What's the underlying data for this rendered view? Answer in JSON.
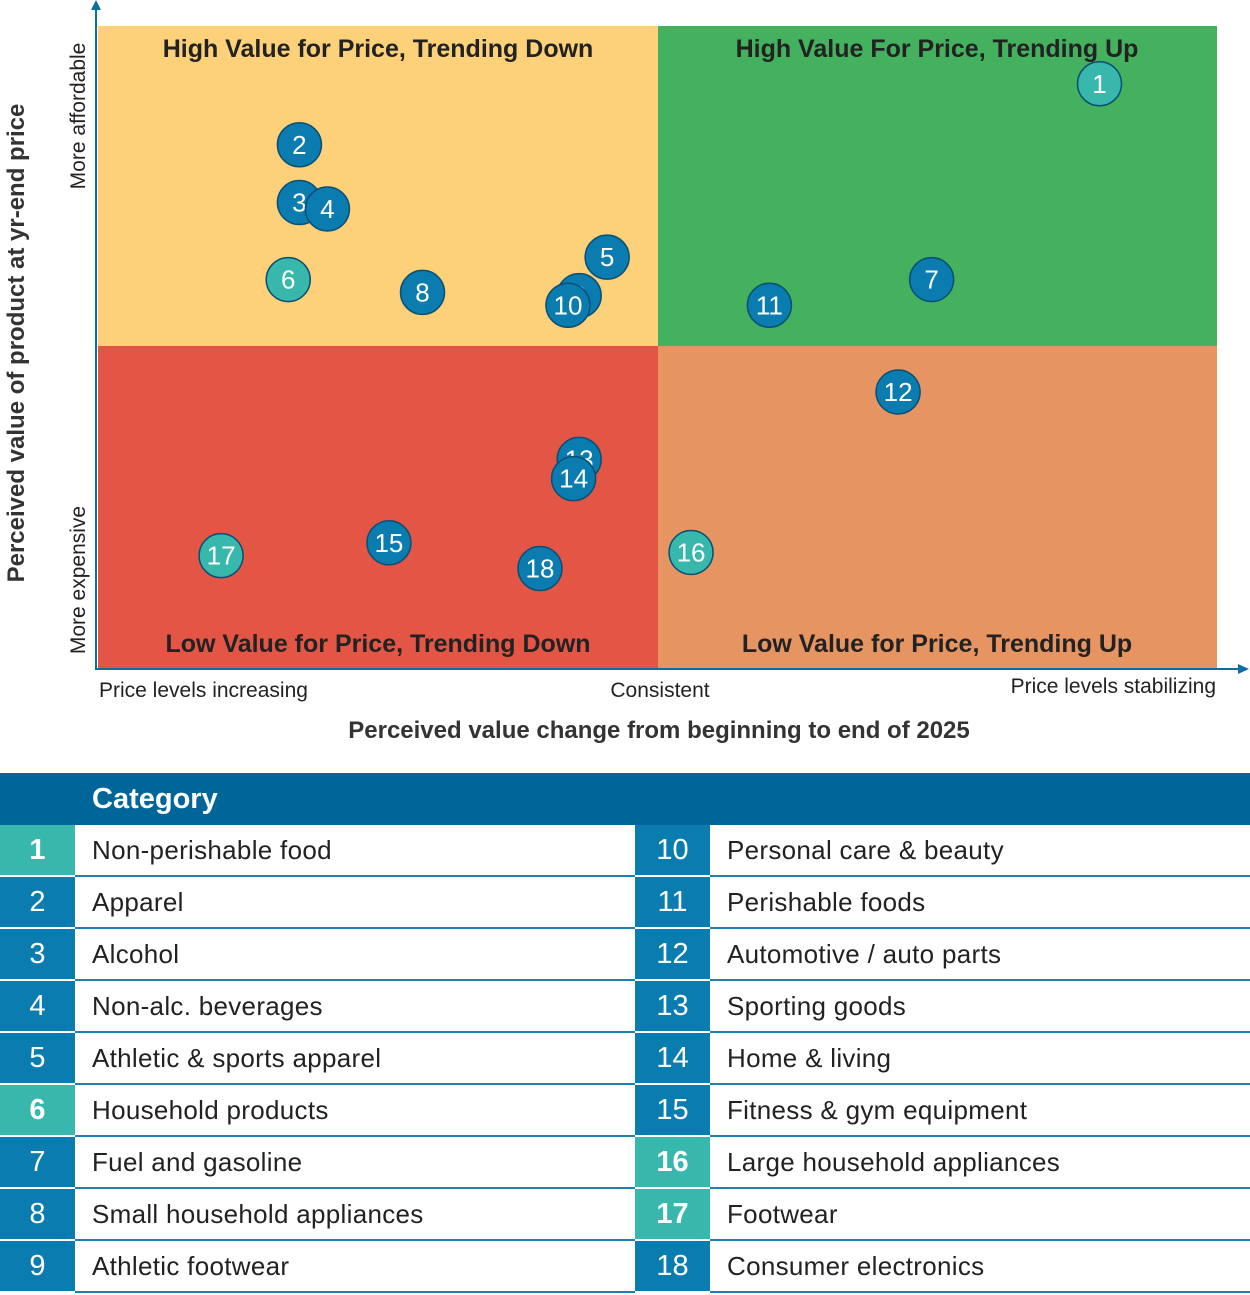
{
  "chart_data": {
    "type": "scatter",
    "quadrants": {
      "top_left": "High Value for Price, Trending Down",
      "top_right": "High Value For Price, Trending Up",
      "bottom_left": "Low Value for Price, Trending Down",
      "bottom_right": "Low Value for Price, Trending Up"
    },
    "quadrant_colors": {
      "top_left": "#fdd07a",
      "top_right": "#43b15e",
      "bottom_left": "#e35646",
      "bottom_right": "#e79463"
    },
    "xlabel": "Perceived value change from beginning to end of 2025",
    "ylabel": "Perceived value of product at yr-end price",
    "x_ticks": {
      "left": "Price levels increasing",
      "middle": "Consistent",
      "right": "Price levels stabilizing"
    },
    "y_ticks": {
      "top": "More affordable",
      "bottom": "More expensive"
    },
    "xlim": [
      -1,
      1
    ],
    "ylim": [
      -1,
      1
    ],
    "point_colors": {
      "blue": "#0b7cb0",
      "teal": "#38b8ad"
    },
    "points": [
      {
        "id": "1",
        "x": 0.79,
        "y": 0.82,
        "color": "teal"
      },
      {
        "id": "2",
        "x": -0.64,
        "y": 0.63,
        "color": "blue"
      },
      {
        "id": "3",
        "x": -0.64,
        "y": 0.45,
        "color": "blue"
      },
      {
        "id": "4",
        "x": -0.59,
        "y": 0.43,
        "color": "blue"
      },
      {
        "id": "5",
        "x": -0.09,
        "y": 0.28,
        "color": "blue"
      },
      {
        "id": "6",
        "x": -0.66,
        "y": 0.21,
        "color": "teal"
      },
      {
        "id": "7",
        "x": 0.49,
        "y": 0.21,
        "color": "blue"
      },
      {
        "id": "8",
        "x": -0.42,
        "y": 0.17,
        "color": "blue"
      },
      {
        "id": "9",
        "x": -0.14,
        "y": 0.16,
        "color": "blue"
      },
      {
        "id": "10",
        "x": -0.16,
        "y": 0.13,
        "color": "blue"
      },
      {
        "id": "11",
        "x": 0.2,
        "y": 0.13,
        "color": "blue"
      },
      {
        "id": "12",
        "x": 0.43,
        "y": -0.14,
        "color": "blue"
      },
      {
        "id": "13",
        "x": -0.14,
        "y": -0.35,
        "color": "blue"
      },
      {
        "id": "14",
        "x": -0.15,
        "y": -0.41,
        "color": "blue"
      },
      {
        "id": "15",
        "x": -0.48,
        "y": -0.61,
        "color": "blue"
      },
      {
        "id": "16",
        "x": 0.06,
        "y": -0.64,
        "color": "teal"
      },
      {
        "id": "17",
        "x": -0.78,
        "y": -0.65,
        "color": "teal"
      },
      {
        "id": "18",
        "x": -0.21,
        "y": -0.69,
        "color": "blue"
      }
    ]
  },
  "legend": {
    "header": "Category",
    "rows": [
      [
        {
          "num": "1",
          "label": "Non-perishable food",
          "highlight": true
        },
        {
          "num": "10",
          "label": "Personal care & beauty",
          "highlight": false
        }
      ],
      [
        {
          "num": "2",
          "label": "Apparel",
          "highlight": false
        },
        {
          "num": "11",
          "label": "Perishable foods",
          "highlight": false
        }
      ],
      [
        {
          "num": "3",
          "label": "Alcohol",
          "highlight": false
        },
        {
          "num": "12",
          "label": "Automotive / auto parts",
          "highlight": false
        }
      ],
      [
        {
          "num": "4",
          "label": "Non-alc. beverages",
          "highlight": false
        },
        {
          "num": "13",
          "label": "Sporting goods",
          "highlight": false
        }
      ],
      [
        {
          "num": "5",
          "label": "Athletic & sports apparel",
          "highlight": false
        },
        {
          "num": "14",
          "label": "Home & living",
          "highlight": false
        }
      ],
      [
        {
          "num": "6",
          "label": "Household products",
          "highlight": true
        },
        {
          "num": "15",
          "label": "Fitness & gym equipment",
          "highlight": false
        }
      ],
      [
        {
          "num": "7",
          "label": "Fuel and gasoline",
          "highlight": false
        },
        {
          "num": "16",
          "label": "Large household appliances",
          "highlight": true
        }
      ],
      [
        {
          "num": "8",
          "label": "Small household appliances",
          "highlight": false
        },
        {
          "num": "17",
          "label": "Footwear",
          "highlight": true
        }
      ],
      [
        {
          "num": "9",
          "label": "Athletic footwear",
          "highlight": false
        },
        {
          "num": "18",
          "label": "Consumer electronics",
          "highlight": false
        }
      ]
    ]
  }
}
